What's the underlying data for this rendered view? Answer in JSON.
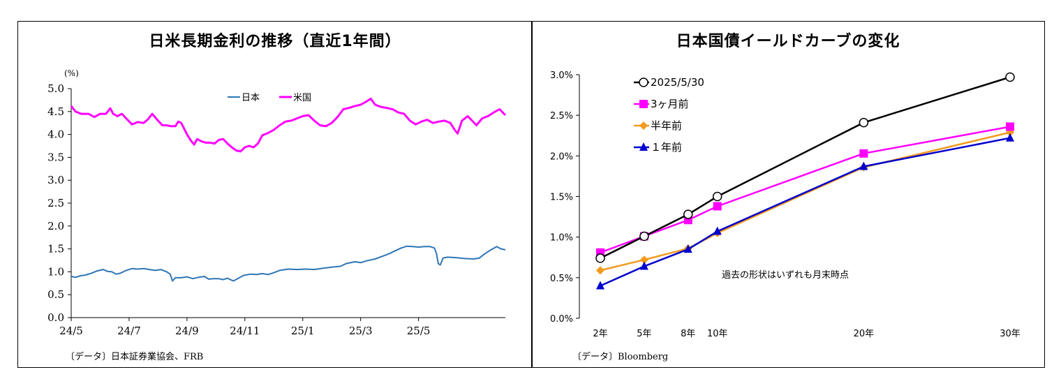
{
  "left_chart": {
    "title": "日米長期金利の推移（直近1年間）",
    "source": "〔データ〕日本証券業協会、FRB",
    "unit_label": "(%)",
    "chart_data": {
      "type": "line",
      "title": "日米長期金利の推移（直近1年間）",
      "ylabel": "(%)",
      "ylim": [
        0,
        5
      ],
      "yticks": [
        "5.0",
        "4.5",
        "4.0",
        "3.5",
        "3.0",
        "2.5",
        "2.0",
        "1.5",
        "1.0",
        "0.5",
        "0.0"
      ],
      "x_ticks": [
        "24/5",
        "24/7",
        "24/9",
        "24/11",
        "25/1",
        "25/3",
        "25/5"
      ],
      "legend": [
        "日本",
        "米国"
      ],
      "legend_position": "top-center",
      "grid": false,
      "x_range_months": [
        0,
        13
      ],
      "series": [
        {
          "name": "日本",
          "color": "#2e75b6",
          "points": [
            [
              0,
              0.9
            ],
            [
              0.15,
              0.88
            ],
            [
              0.3,
              0.91
            ],
            [
              0.5,
              0.93
            ],
            [
              0.7,
              0.97
            ],
            [
              0.9,
              1.02
            ],
            [
              1.1,
              1.05
            ],
            [
              1.25,
              1.01
            ],
            [
              1.4,
              1.0
            ],
            [
              1.55,
              0.95
            ],
            [
              1.7,
              0.97
            ],
            [
              1.9,
              1.03
            ],
            [
              2.1,
              1.07
            ],
            [
              2.3,
              1.06
            ],
            [
              2.5,
              1.07
            ],
            [
              2.7,
              1.05
            ],
            [
              2.9,
              1.03
            ],
            [
              3.1,
              1.05
            ],
            [
              3.3,
              1.0
            ],
            [
              3.42,
              0.95
            ],
            [
              3.5,
              0.8
            ],
            [
              3.6,
              0.87
            ],
            [
              3.8,
              0.87
            ],
            [
              4.0,
              0.89
            ],
            [
              4.2,
              0.85
            ],
            [
              4.4,
              0.88
            ],
            [
              4.6,
              0.9
            ],
            [
              4.75,
              0.84
            ],
            [
              4.9,
              0.85
            ],
            [
              5.1,
              0.85
            ],
            [
              5.25,
              0.83
            ],
            [
              5.4,
              0.86
            ],
            [
              5.6,
              0.8
            ],
            [
              5.75,
              0.85
            ],
            [
              5.95,
              0.92
            ],
            [
              6.2,
              0.95
            ],
            [
              6.4,
              0.94
            ],
            [
              6.6,
              0.96
            ],
            [
              6.8,
              0.94
            ],
            [
              7.0,
              0.98
            ],
            [
              7.2,
              1.03
            ],
            [
              7.5,
              1.06
            ],
            [
              7.8,
              1.05
            ],
            [
              8.1,
              1.06
            ],
            [
              8.4,
              1.05
            ],
            [
              8.7,
              1.08
            ],
            [
              9.0,
              1.1
            ],
            [
              9.3,
              1.12
            ],
            [
              9.5,
              1.18
            ],
            [
              9.8,
              1.22
            ],
            [
              10.0,
              1.2
            ],
            [
              10.2,
              1.24
            ],
            [
              10.5,
              1.28
            ],
            [
              10.8,
              1.35
            ],
            [
              11.0,
              1.4
            ],
            [
              11.2,
              1.46
            ],
            [
              11.4,
              1.52
            ],
            [
              11.6,
              1.56
            ],
            [
              11.8,
              1.55
            ],
            [
              12.0,
              1.54
            ],
            [
              12.2,
              1.55
            ],
            [
              12.4,
              1.55
            ],
            [
              12.55,
              1.52
            ],
            [
              12.62,
              1.4
            ],
            [
              12.68,
              1.18
            ],
            [
              12.75,
              1.15
            ],
            [
              12.85,
              1.3
            ],
            [
              13.0,
              1.32
            ],
            [
              13.3,
              1.31
            ],
            [
              13.6,
              1.29
            ],
            [
              13.9,
              1.28
            ],
            [
              14.1,
              1.3
            ],
            [
              14.3,
              1.4
            ],
            [
              14.5,
              1.48
            ],
            [
              14.7,
              1.55
            ],
            [
              14.85,
              1.5
            ],
            [
              15.0,
              1.48
            ]
          ]
        },
        {
          "name": "米国",
          "color": "#ff00ff",
          "points": [
            [
              0,
              4.62
            ],
            [
              0.15,
              4.5
            ],
            [
              0.35,
              4.45
            ],
            [
              0.6,
              4.45
            ],
            [
              0.8,
              4.38
            ],
            [
              1.0,
              4.45
            ],
            [
              1.2,
              4.45
            ],
            [
              1.35,
              4.57
            ],
            [
              1.45,
              4.45
            ],
            [
              1.6,
              4.4
            ],
            [
              1.75,
              4.45
            ],
            [
              1.9,
              4.35
            ],
            [
              2.1,
              4.22
            ],
            [
              2.3,
              4.27
            ],
            [
              2.5,
              4.25
            ],
            [
              2.65,
              4.33
            ],
            [
              2.8,
              4.45
            ],
            [
              3.0,
              4.3
            ],
            [
              3.15,
              4.2
            ],
            [
              3.3,
              4.2
            ],
            [
              3.45,
              4.18
            ],
            [
              3.6,
              4.18
            ],
            [
              3.7,
              4.28
            ],
            [
              3.8,
              4.25
            ],
            [
              3.9,
              4.13
            ],
            [
              4.0,
              4.0
            ],
            [
              4.15,
              3.85
            ],
            [
              4.25,
              3.78
            ],
            [
              4.35,
              3.9
            ],
            [
              4.5,
              3.85
            ],
            [
              4.65,
              3.82
            ],
            [
              4.8,
              3.82
            ],
            [
              4.95,
              3.8
            ],
            [
              5.1,
              3.88
            ],
            [
              5.25,
              3.9
            ],
            [
              5.4,
              3.8
            ],
            [
              5.55,
              3.72
            ],
            [
              5.7,
              3.65
            ],
            [
              5.85,
              3.63
            ],
            [
              6.0,
              3.72
            ],
            [
              6.15,
              3.75
            ],
            [
              6.3,
              3.72
            ],
            [
              6.45,
              3.8
            ],
            [
              6.6,
              3.98
            ],
            [
              6.8,
              4.03
            ],
            [
              7.0,
              4.1
            ],
            [
              7.2,
              4.2
            ],
            [
              7.4,
              4.28
            ],
            [
              7.6,
              4.3
            ],
            [
              7.8,
              4.35
            ],
            [
              8.0,
              4.4
            ],
            [
              8.2,
              4.42
            ],
            [
              8.4,
              4.3
            ],
            [
              8.6,
              4.2
            ],
            [
              8.8,
              4.18
            ],
            [
              9.0,
              4.25
            ],
            [
              9.2,
              4.38
            ],
            [
              9.4,
              4.55
            ],
            [
              9.6,
              4.58
            ],
            [
              9.8,
              4.62
            ],
            [
              10.0,
              4.65
            ],
            [
              10.2,
              4.72
            ],
            [
              10.35,
              4.78
            ],
            [
              10.5,
              4.65
            ],
            [
              10.7,
              4.6
            ],
            [
              10.9,
              4.58
            ],
            [
              11.1,
              4.55
            ],
            [
              11.3,
              4.48
            ],
            [
              11.5,
              4.45
            ],
            [
              11.7,
              4.3
            ],
            [
              11.9,
              4.22
            ],
            [
              12.1,
              4.28
            ],
            [
              12.3,
              4.32
            ],
            [
              12.5,
              4.25
            ],
            [
              12.7,
              4.28
            ],
            [
              12.9,
              4.3
            ],
            [
              13.1,
              4.25
            ],
            [
              13.25,
              4.1
            ],
            [
              13.35,
              4.02
            ],
            [
              13.5,
              4.3
            ],
            [
              13.7,
              4.4
            ],
            [
              13.85,
              4.3
            ],
            [
              14.0,
              4.2
            ],
            [
              14.2,
              4.35
            ],
            [
              14.4,
              4.4
            ],
            [
              14.6,
              4.48
            ],
            [
              14.8,
              4.55
            ],
            [
              15.0,
              4.42
            ]
          ]
        }
      ]
    }
  },
  "right_chart": {
    "title": "日本国債イールドカーブの変化",
    "source": "〔データ〕Bloomberg",
    "annotation": "過去の形状はいずれも月末時点",
    "chart_data": {
      "type": "line",
      "title": "日本国債イールドカーブの変化",
      "categories": [
        "2年",
        "5年",
        "8年",
        "10年",
        "20年",
        "30年"
      ],
      "x_numeric": [
        2,
        5,
        8,
        10,
        20,
        30
      ],
      "ylim": [
        0,
        3.0
      ],
      "yticks": [
        "3.0%",
        "2.5%",
        "2.0%",
        "1.5%",
        "1.0%",
        "0.5%",
        "0.0%"
      ],
      "legend_position": "top-left",
      "grid": false,
      "series": [
        {
          "name": "2025/5/30",
          "color": "#000000",
          "marker": "circle-open",
          "values": [
            0.74,
            1.01,
            1.28,
            1.5,
            2.41,
            2.97
          ]
        },
        {
          "name": "3ヶ月前",
          "color": "#ff00ff",
          "marker": "square",
          "values": [
            0.81,
            1.01,
            1.21,
            1.38,
            2.03,
            2.36
          ]
        },
        {
          "name": "半年前",
          "color": "#f39a1e",
          "marker": "diamond",
          "values": [
            0.59,
            0.72,
            0.86,
            1.05,
            1.86,
            2.29
          ]
        },
        {
          "name": "１年前",
          "color": "#0000cc",
          "marker": "triangle",
          "values": [
            0.4,
            0.64,
            0.85,
            1.07,
            1.87,
            2.22
          ]
        }
      ]
    }
  }
}
